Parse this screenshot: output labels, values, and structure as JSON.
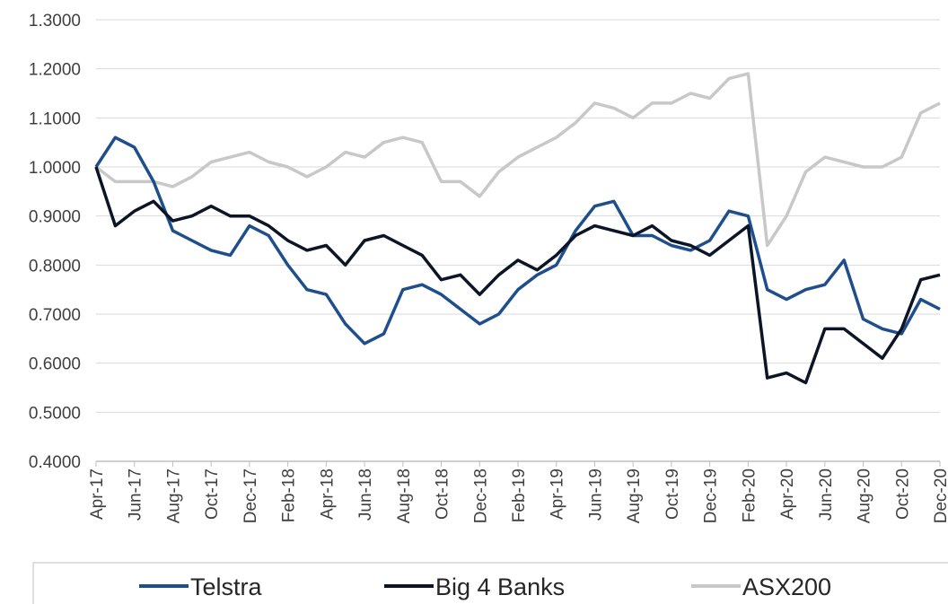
{
  "chart_data": {
    "type": "line",
    "categories": [
      "Apr-17",
      null,
      "Jun-17",
      null,
      "Aug-17",
      null,
      "Oct-17",
      null,
      "Dec-17",
      null,
      "Feb-18",
      null,
      "Apr-18",
      null,
      "Jun-18",
      null,
      "Aug-18",
      null,
      "Oct-18",
      null,
      "Dec-18",
      null,
      "Feb-19",
      null,
      "Apr-19",
      null,
      "Jun-19",
      null,
      "Aug-19",
      null,
      "Oct-19",
      null,
      "Dec-19",
      null,
      "Feb-20",
      null,
      "Apr-20",
      null,
      "Jun-20",
      null,
      "Aug-20",
      null,
      "Oct-20",
      null,
      "Dec-20"
    ],
    "series": [
      {
        "name": "Telstra",
        "color": "#1f4e8c",
        "values": [
          1.0,
          1.06,
          1.04,
          0.97,
          0.87,
          0.85,
          0.83,
          0.82,
          0.88,
          0.86,
          0.8,
          0.75,
          0.74,
          0.68,
          0.64,
          0.66,
          0.75,
          0.76,
          0.74,
          0.71,
          0.68,
          0.7,
          0.75,
          0.78,
          0.8,
          0.87,
          0.92,
          0.93,
          0.86,
          0.86,
          0.84,
          0.83,
          0.85,
          0.91,
          0.9,
          0.75,
          0.73,
          0.75,
          0.76,
          0.81,
          0.69,
          0.67,
          0.66,
          0.73,
          0.71
        ]
      },
      {
        "name": "Big 4 Banks",
        "color": "#0b1526",
        "values": [
          1.0,
          0.88,
          0.91,
          0.93,
          0.89,
          0.9,
          0.92,
          0.9,
          0.9,
          0.88,
          0.85,
          0.83,
          0.84,
          0.8,
          0.85,
          0.86,
          0.84,
          0.82,
          0.77,
          0.78,
          0.74,
          0.78,
          0.81,
          0.79,
          0.82,
          0.86,
          0.88,
          0.87,
          0.86,
          0.88,
          0.85,
          0.84,
          0.82,
          0.85,
          0.88,
          0.57,
          0.58,
          0.56,
          0.67,
          0.67,
          0.64,
          0.61,
          0.67,
          0.77,
          0.78
        ]
      },
      {
        "name": "ASX200",
        "color": "#c8c8c8",
        "values": [
          1.0,
          0.97,
          0.97,
          0.97,
          0.96,
          0.98,
          1.01,
          1.02,
          1.03,
          1.01,
          1.0,
          0.98,
          1.0,
          1.03,
          1.02,
          1.05,
          1.06,
          1.05,
          0.97,
          0.97,
          0.94,
          0.99,
          1.02,
          1.04,
          1.06,
          1.09,
          1.13,
          1.12,
          1.1,
          1.13,
          1.13,
          1.15,
          1.14,
          1.18,
          1.19,
          0.84,
          0.9,
          0.99,
          1.02,
          1.01,
          1.0,
          1.0,
          1.02,
          1.11,
          1.13
        ]
      }
    ],
    "ylim": [
      0.4,
      1.3
    ],
    "yticks": [
      {
        "value": 0.4,
        "label": "0.4000"
      },
      {
        "value": 0.5,
        "label": "0.5000"
      },
      {
        "value": 0.6,
        "label": "0.6000"
      },
      {
        "value": 0.7,
        "label": "0.7000"
      },
      {
        "value": 0.8,
        "label": "0.8000"
      },
      {
        "value": 0.9,
        "label": "0.9000"
      },
      {
        "value": 1.0,
        "label": "1.0000"
      },
      {
        "value": 1.1,
        "label": "1.1000"
      },
      {
        "value": 1.2,
        "label": "1.2000"
      },
      {
        "value": 1.3,
        "label": "1.3000"
      }
    ],
    "grid": true,
    "legend": "bottom"
  }
}
